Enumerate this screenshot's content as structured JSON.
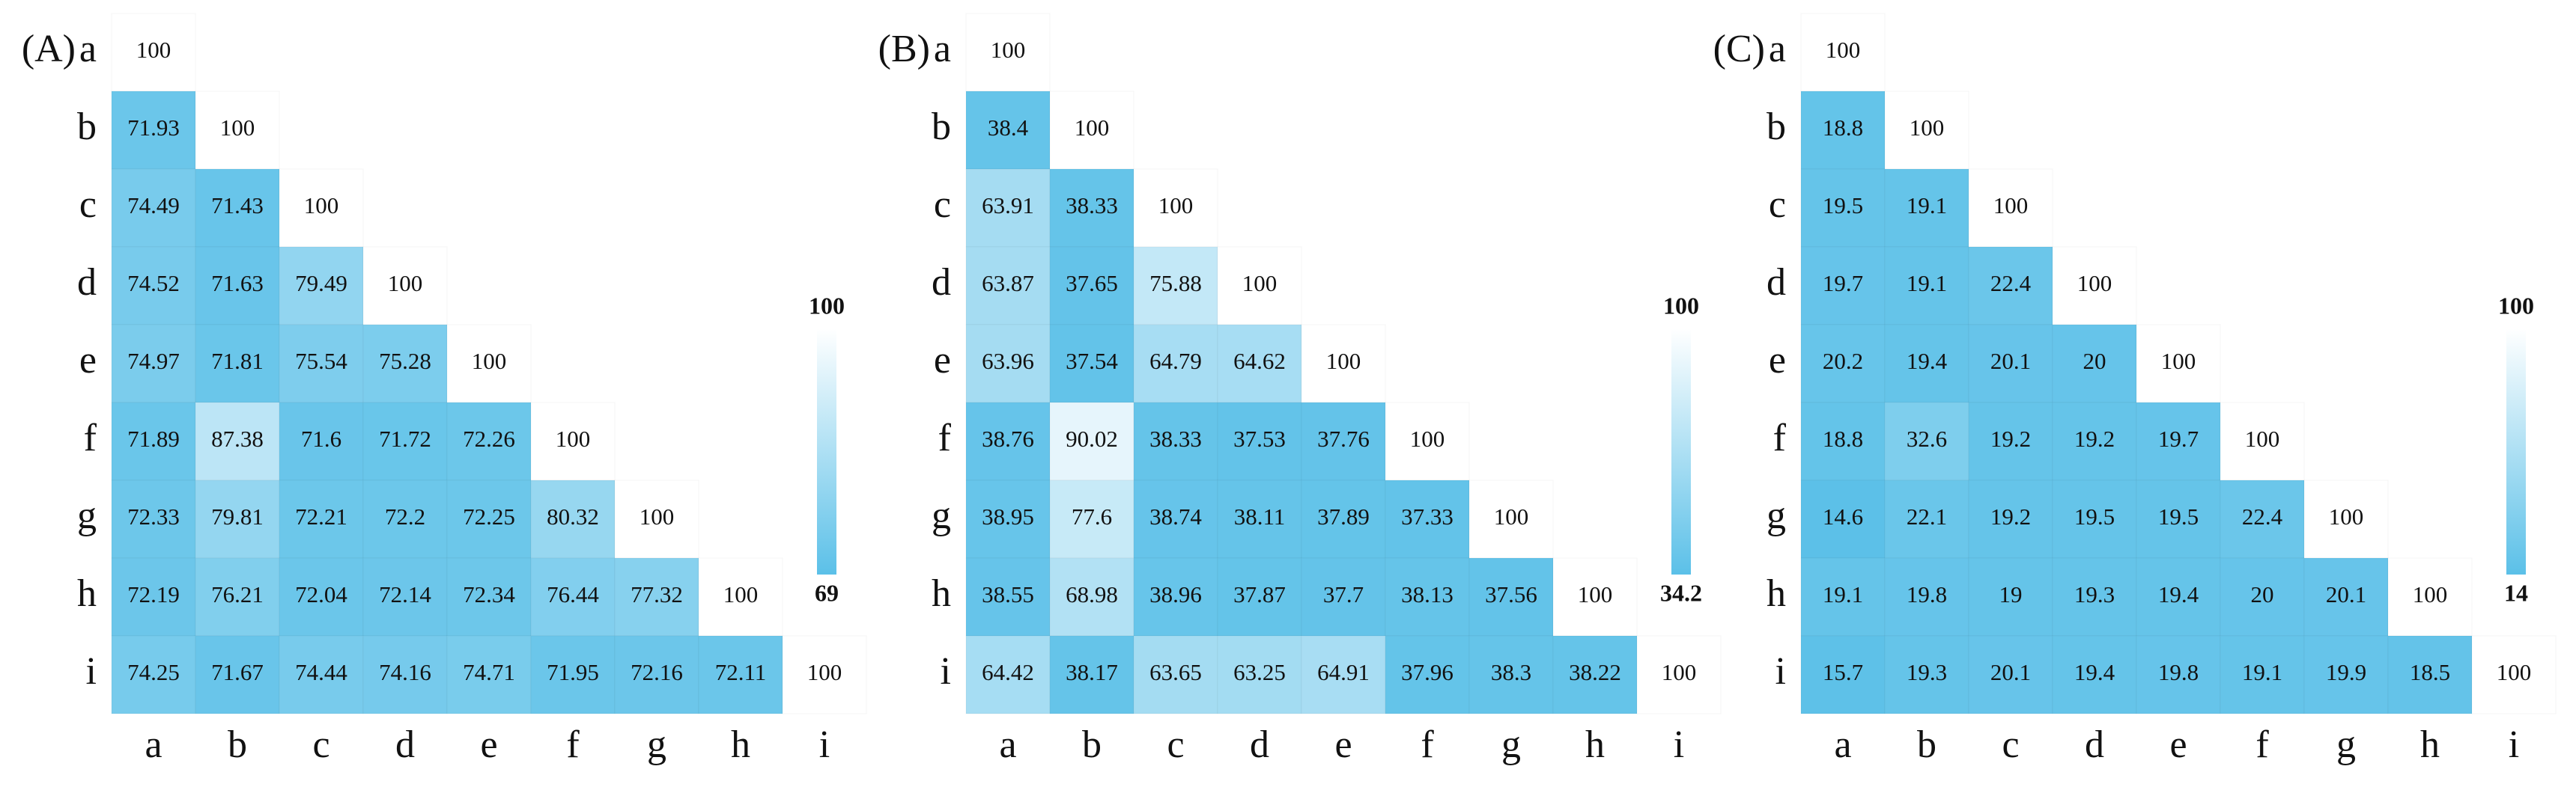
{
  "chart_data": [
    {
      "type": "heatmap",
      "title": "(A)",
      "x_categories": [
        "a",
        "b",
        "c",
        "d",
        "e",
        "f",
        "g",
        "h",
        "i"
      ],
      "y_categories": [
        "a",
        "b",
        "c",
        "d",
        "e",
        "f",
        "g",
        "h",
        "i"
      ],
      "values": [
        [
          100,
          null,
          null,
          null,
          null,
          null,
          null,
          null,
          null
        ],
        [
          71.93,
          100,
          null,
          null,
          null,
          null,
          null,
          null,
          null
        ],
        [
          74.49,
          71.43,
          100,
          null,
          null,
          null,
          null,
          null,
          null
        ],
        [
          74.52,
          71.63,
          79.49,
          100,
          null,
          null,
          null,
          null,
          null
        ],
        [
          74.97,
          71.81,
          75.54,
          75.28,
          100,
          null,
          null,
          null,
          null
        ],
        [
          71.89,
          87.38,
          71.6,
          71.72,
          72.26,
          100,
          null,
          null,
          null
        ],
        [
          72.33,
          79.81,
          72.21,
          72.2,
          72.25,
          80.32,
          100,
          null,
          null
        ],
        [
          72.19,
          76.21,
          72.04,
          72.14,
          72.34,
          76.44,
          77.32,
          100,
          null
        ],
        [
          74.25,
          71.67,
          74.44,
          74.16,
          74.71,
          71.95,
          72.16,
          72.11,
          100
        ]
      ],
      "zlim": [
        69,
        100
      ],
      "zticks": [
        69,
        100
      ],
      "colorscale": [
        "#5bc0e8",
        "#ffffff"
      ]
    },
    {
      "type": "heatmap",
      "title": "(B)",
      "x_categories": [
        "a",
        "b",
        "c",
        "d",
        "e",
        "f",
        "g",
        "h",
        "i"
      ],
      "y_categories": [
        "a",
        "b",
        "c",
        "d",
        "e",
        "f",
        "g",
        "h",
        "i"
      ],
      "values": [
        [
          100,
          null,
          null,
          null,
          null,
          null,
          null,
          null,
          null
        ],
        [
          38.4,
          100,
          null,
          null,
          null,
          null,
          null,
          null,
          null
        ],
        [
          63.91,
          38.33,
          100,
          null,
          null,
          null,
          null,
          null,
          null
        ],
        [
          63.87,
          37.65,
          75.88,
          100,
          null,
          null,
          null,
          null,
          null
        ],
        [
          63.96,
          37.54,
          64.79,
          64.62,
          100,
          null,
          null,
          null,
          null
        ],
        [
          38.76,
          90.02,
          38.33,
          37.53,
          37.76,
          100,
          null,
          null,
          null
        ],
        [
          38.95,
          77.6,
          38.74,
          38.11,
          37.89,
          37.33,
          100,
          null,
          null
        ],
        [
          38.55,
          68.98,
          38.96,
          37.87,
          37.7,
          38.13,
          37.56,
          100,
          null
        ],
        [
          64.42,
          38.17,
          63.65,
          63.25,
          64.91,
          37.96,
          38.3,
          38.22,
          100
        ]
      ],
      "zlim": [
        34.2,
        100
      ],
      "zticks": [
        34.2,
        100
      ],
      "colorscale": [
        "#5bc0e8",
        "#ffffff"
      ]
    },
    {
      "type": "heatmap",
      "title": "(C)",
      "x_categories": [
        "a",
        "b",
        "c",
        "d",
        "e",
        "f",
        "g",
        "h",
        "i"
      ],
      "y_categories": [
        "a",
        "b",
        "c",
        "d",
        "e",
        "f",
        "g",
        "h",
        "i"
      ],
      "values": [
        [
          100,
          null,
          null,
          null,
          null,
          null,
          null,
          null,
          null
        ],
        [
          18.8,
          100,
          null,
          null,
          null,
          null,
          null,
          null,
          null
        ],
        [
          19.5,
          19.1,
          100,
          null,
          null,
          null,
          null,
          null,
          null
        ],
        [
          19.7,
          19.1,
          22.4,
          100,
          null,
          null,
          null,
          null,
          null
        ],
        [
          20.2,
          19.4,
          20.1,
          20,
          100,
          null,
          null,
          null,
          null
        ],
        [
          18.8,
          32.6,
          19.2,
          19.2,
          19.7,
          100,
          null,
          null,
          null
        ],
        [
          14.6,
          22.1,
          19.2,
          19.5,
          19.5,
          22.4,
          100,
          null,
          null
        ],
        [
          19.1,
          19.8,
          19,
          19.3,
          19.4,
          20,
          20.1,
          100,
          null
        ],
        [
          15.7,
          19.3,
          20.1,
          19.4,
          19.8,
          19.1,
          19.9,
          18.5,
          100
        ]
      ],
      "zlim": [
        14,
        100
      ],
      "zticks": [
        14,
        100
      ],
      "colorscale": [
        "#5bc0e8",
        "#ffffff"
      ]
    }
  ]
}
